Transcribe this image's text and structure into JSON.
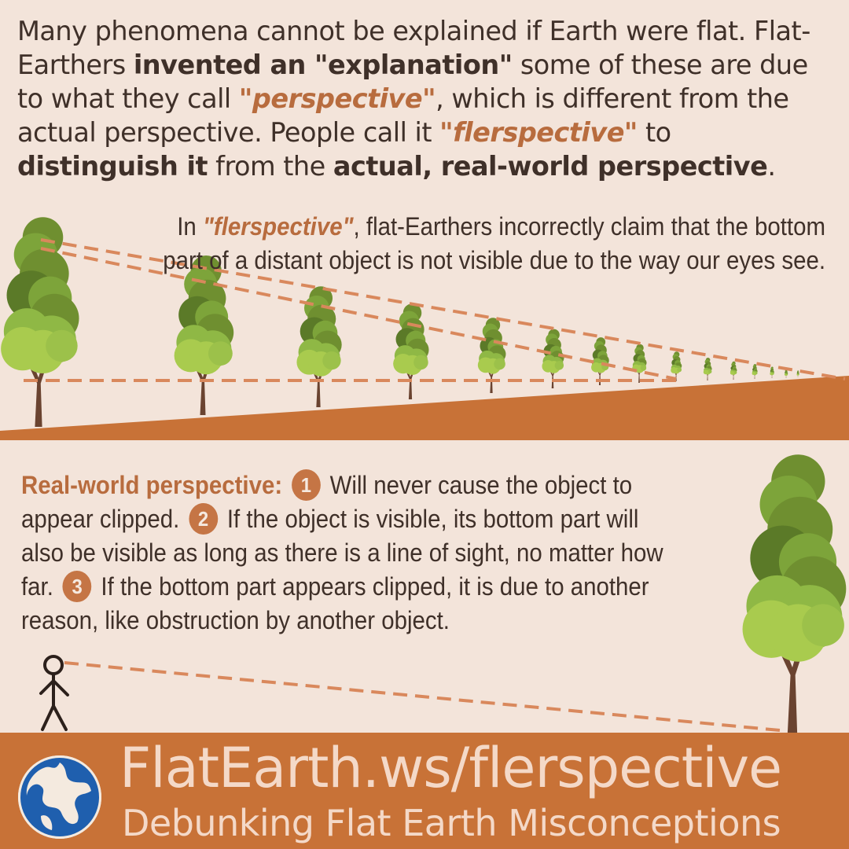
{
  "intro": {
    "t1": "Many phenomena cannot be explained if Earth were flat. Flat-Earthers ",
    "b1": "invented an \"explanation\"",
    "t2": " some of these are due to what they call ",
    "a1": "\"perspective\"",
    "t3": ", which is different from the actual perspective. People call it ",
    "a2": "\"flerspective\"",
    "t4": " to ",
    "b2": "distinguish it",
    "t5": " from the ",
    "b3": "actual, real-world perspective",
    "t6": "."
  },
  "flerspective_note": {
    "t1": "In ",
    "a1": "\"flerspective\"",
    "t2": ", flat-Earthers incorrectly claim that the bottom part of a distant object is not visible due to the way our eyes see."
  },
  "real_world": {
    "lead": "Real-world perspective:",
    "n1": "1",
    "p1": " Will never cause the object to appear clipped. ",
    "n2": "2",
    "p2": " If the object is visible, its bottom part will also be visible as long as there is a line of sight, no matter how far. ",
    "n3": "3",
    "p3": " If the bottom part appears clipped, it is due to another reason, like obstruction by another object."
  },
  "footer": {
    "site": "FlatEarth.ws/flerspective",
    "tagline": "Debunking Flat Earth Misconceptions"
  },
  "colors": {
    "background": "#f3e4da",
    "ground": "#c87237",
    "accent": "#b86c3e",
    "text": "#3f3029",
    "footer_text": "#f4d9c8"
  },
  "icons": [
    "tree-icon",
    "stick-figure-icon",
    "globe-logo-icon"
  ]
}
